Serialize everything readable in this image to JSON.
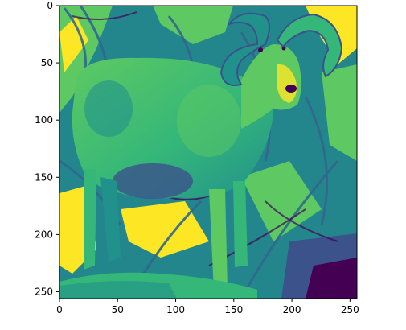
{
  "chart_data": {
    "type": "heatmap",
    "title": "",
    "xlabel": "",
    "ylabel": "",
    "image_size": [
      256,
      256
    ],
    "xlim": [
      0,
      256
    ],
    "ylim": [
      256,
      0
    ],
    "x_ticks": [
      0,
      50,
      100,
      150,
      200,
      250
    ],
    "y_ticks": [
      0,
      50,
      100,
      150,
      200,
      250
    ],
    "colormap": "viridis",
    "colormap_colors": [
      "#440154",
      "#3b528b",
      "#21918c",
      "#5ec962",
      "#fde725"
    ],
    "grid": false,
    "legend": false,
    "subject": "ram-with-curled-horns"
  }
}
